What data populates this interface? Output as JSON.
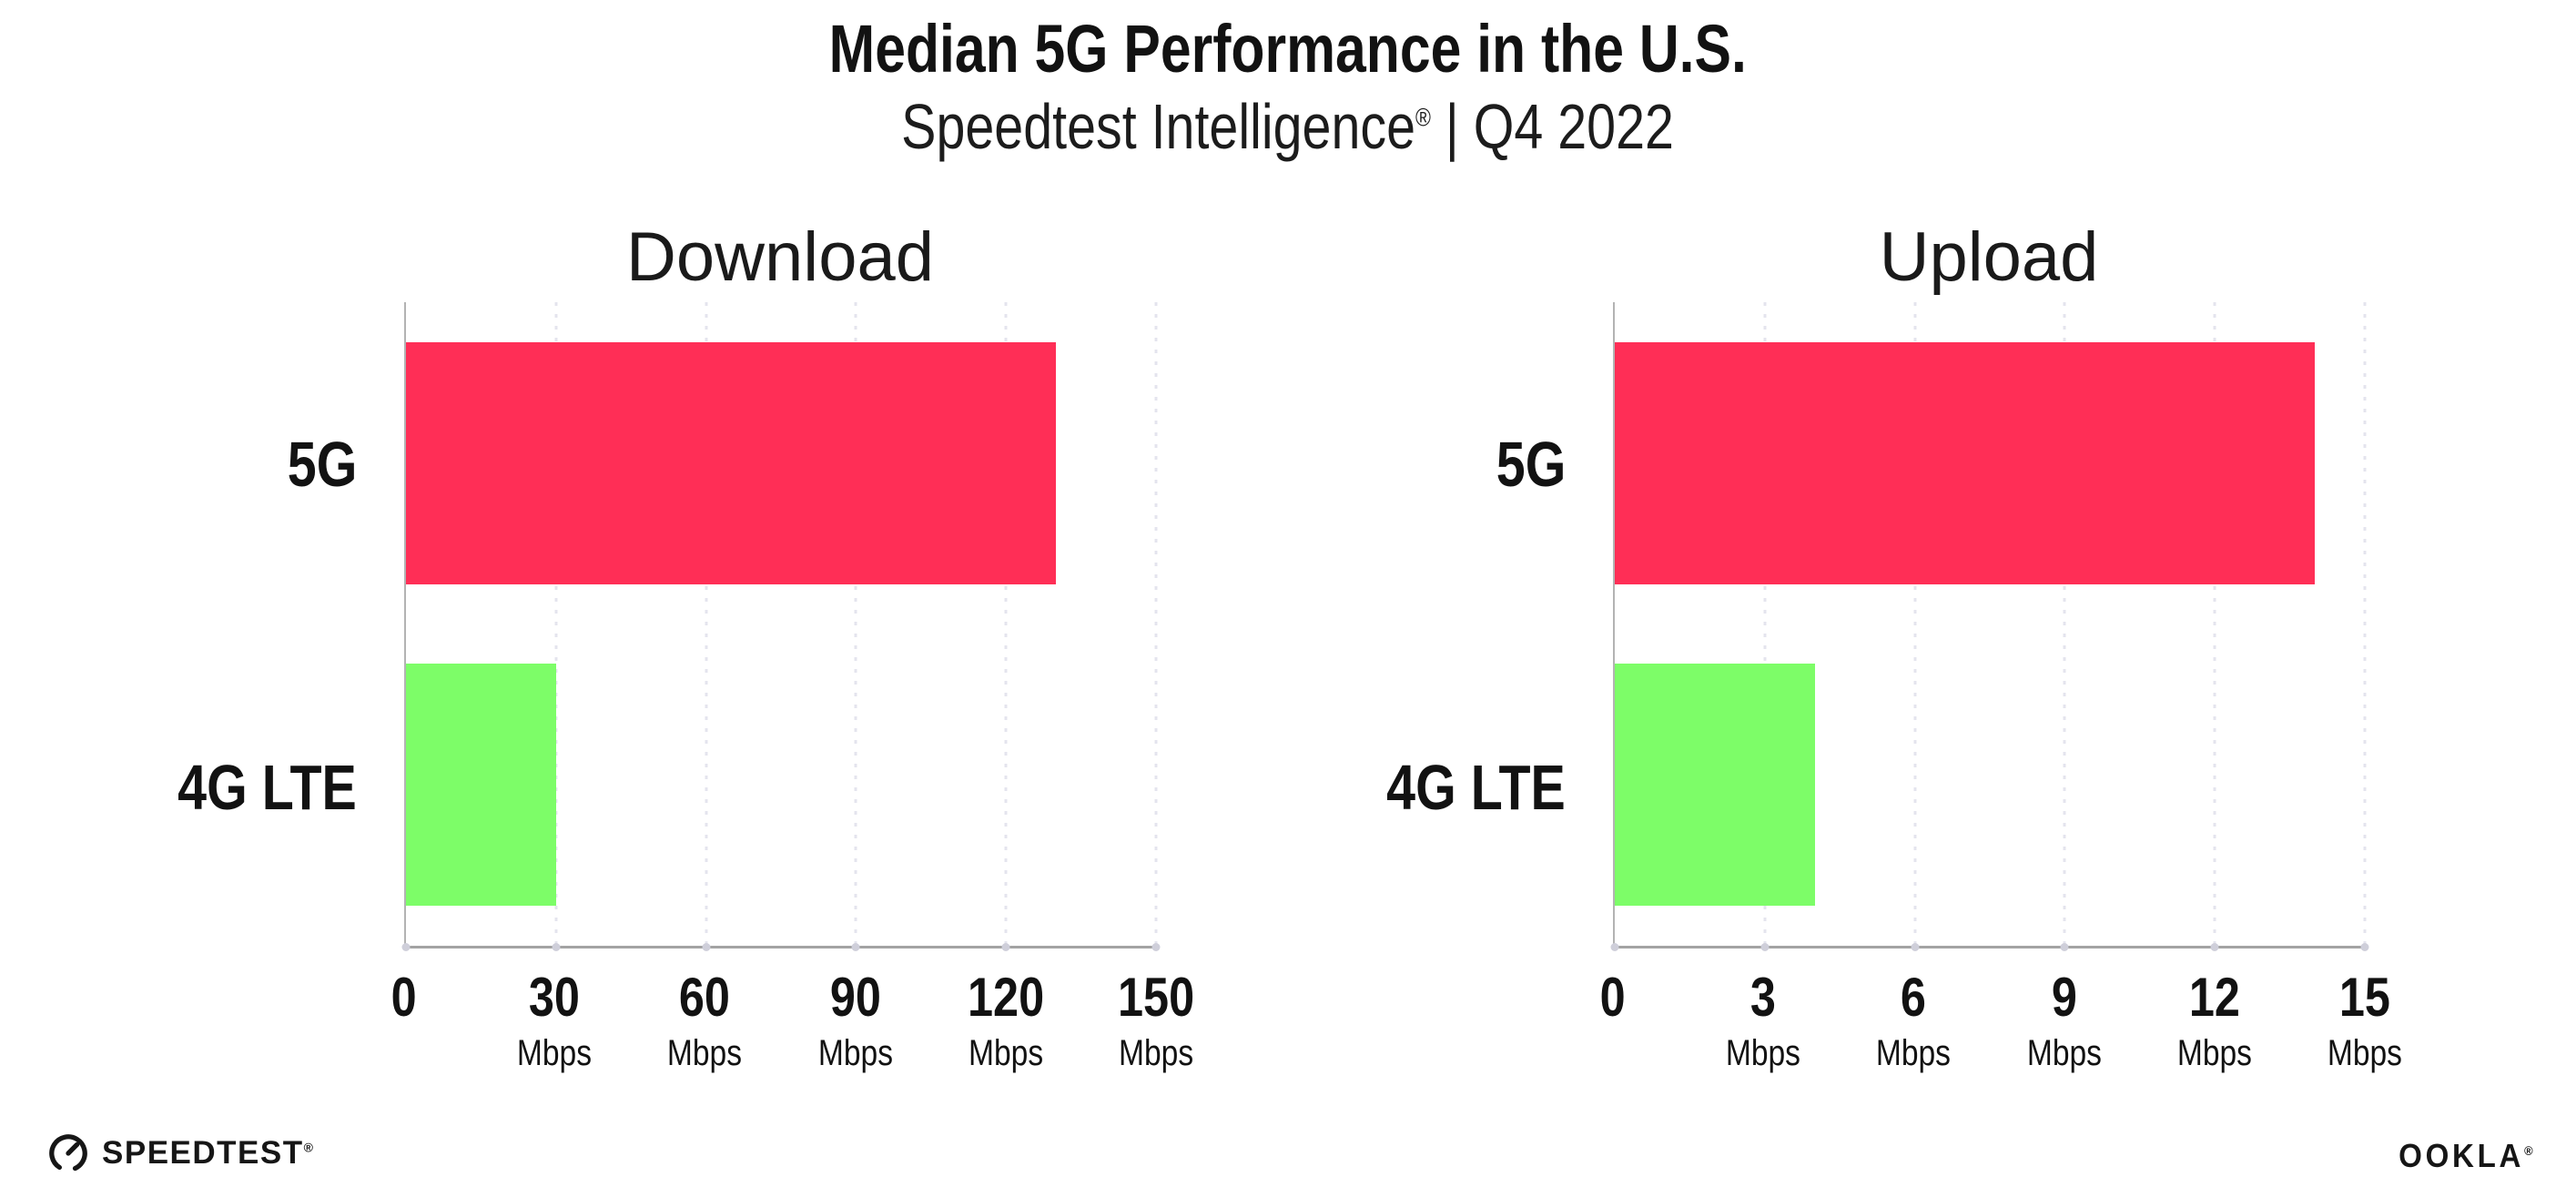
{
  "chart_data": {
    "type": "bar",
    "orientation": "horizontal",
    "title": "Median 5G Performance in the U.S.",
    "subtitle_parts": {
      "brand": "Speedtest Intelligence",
      "reg": "®",
      "rest": " | Q4 2022"
    },
    "categories": [
      "5G",
      "4G LTE"
    ],
    "series_colors": {
      "5G": "#FF2E56",
      "4G LTE": "#7DFD68"
    },
    "panels": [
      {
        "title": "Download",
        "unit": "Mbps",
        "xlim": [
          0,
          150
        ],
        "ticks": [
          0,
          30,
          60,
          90,
          120,
          150
        ],
        "values": [
          130,
          30
        ]
      },
      {
        "title": "Upload",
        "unit": "Mbps",
        "xlim": [
          0,
          15
        ],
        "ticks": [
          0,
          3,
          6,
          9,
          12,
          15
        ],
        "values": [
          14,
          4
        ]
      }
    ],
    "grid": "vertical-dotted",
    "legend": "none"
  },
  "colors": {
    "bar_5g": "#FF2E56",
    "bar_4g_lte": "#7DFD68",
    "axis_line": "#A3A3A3",
    "gridline": "#E4E4EE",
    "text": "#121212",
    "background": "#FFFFFF"
  },
  "footer": {
    "speedtest_label": "SPEEDTEST",
    "speedtest_reg": "®",
    "ookla_label": "OOKLA",
    "ookla_reg": "®"
  }
}
